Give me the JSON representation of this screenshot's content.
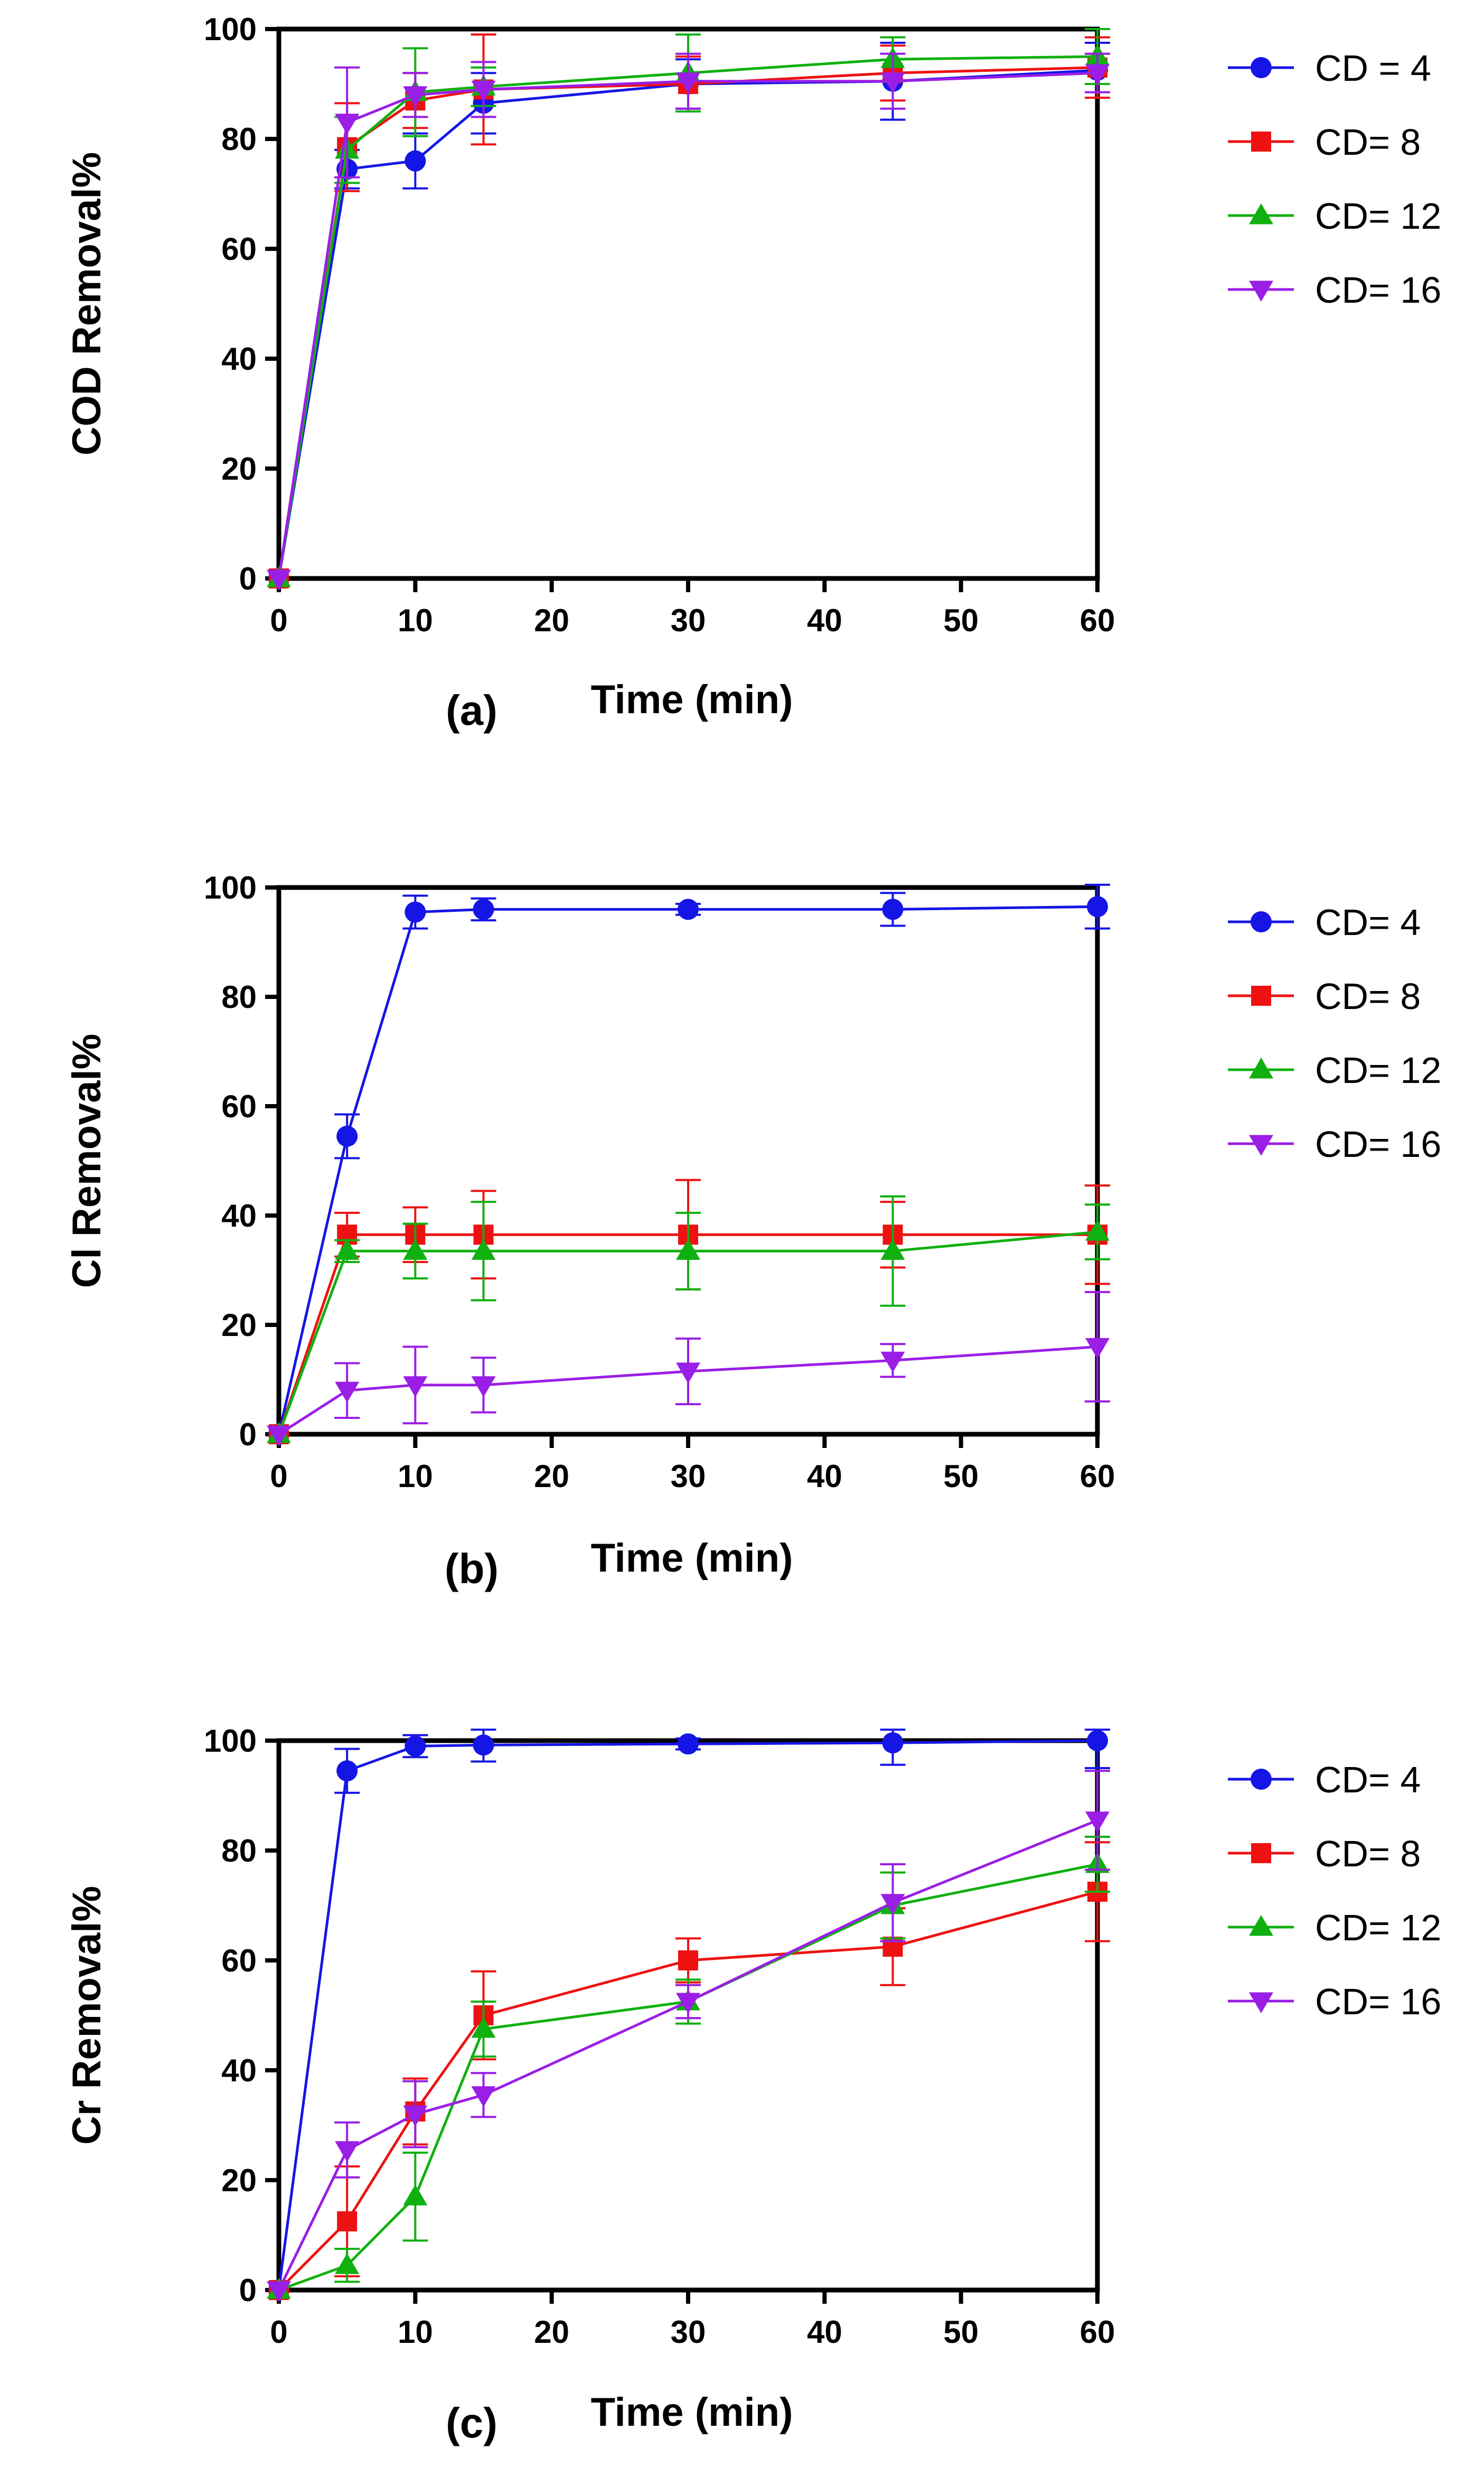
{
  "chart_data": [
    {
      "type": "line",
      "panel_label": "(a)",
      "xlabel": "Time (min)",
      "ylabel": "COD Removal%",
      "xlim": [
        0,
        60
      ],
      "ylim": [
        0,
        100
      ],
      "xticks": [
        0,
        10,
        20,
        30,
        40,
        50,
        60
      ],
      "yticks": [
        0,
        20,
        40,
        60,
        80,
        100
      ],
      "legend_position": "right",
      "x": [
        0,
        5,
        10,
        15,
        30,
        45,
        60
      ],
      "series": [
        {
          "name": "CD = 4",
          "color": "#1515e6",
          "marker": "circle",
          "values": [
            0,
            74.5,
            76,
            86.5,
            90,
            90.5,
            92.5
          ],
          "errors": [
            0,
            3.5,
            5,
            5.5,
            4.5,
            7,
            5
          ]
        },
        {
          "name": "CD= 8",
          "color": "#ee1111",
          "marker": "square",
          "values": [
            0,
            78.5,
            87,
            89,
            90,
            92,
            93
          ],
          "errors": [
            0,
            8,
            5,
            10,
            5,
            5,
            5.5
          ]
        },
        {
          "name": "CD= 12",
          "color": "#10b010",
          "marker": "triangle-up",
          "values": [
            0,
            78,
            88.5,
            89.5,
            92,
            94.5,
            95
          ],
          "errors": [
            0,
            6,
            8,
            3.5,
            7,
            4,
            5
          ]
        },
        {
          "name": "CD= 16",
          "color": "#9a1ee6",
          "marker": "triangle-down",
          "values": [
            0,
            83,
            88,
            89,
            90.5,
            90.5,
            92
          ],
          "errors": [
            0,
            10,
            4,
            5,
            5,
            5,
            3.5
          ]
        }
      ]
    },
    {
      "type": "line",
      "panel_label": "(b)",
      "xlabel": "Time (min)",
      "ylabel": "Cl Removal%",
      "xlim": [
        0,
        60
      ],
      "ylim": [
        0,
        100
      ],
      "xticks": [
        0,
        10,
        20,
        30,
        40,
        50,
        60
      ],
      "yticks": [
        0,
        20,
        40,
        60,
        80,
        100
      ],
      "legend_position": "right",
      "x": [
        0,
        5,
        10,
        15,
        30,
        45,
        60
      ],
      "series": [
        {
          "name": "CD= 4",
          "color": "#1515e6",
          "marker": "circle",
          "values": [
            0,
            54.5,
            95.5,
            96,
            96,
            96,
            96.5
          ],
          "errors": [
            0,
            4,
            3,
            2,
            1,
            3,
            4
          ]
        },
        {
          "name": "CD= 8",
          "color": "#ee1111",
          "marker": "square",
          "values": [
            0,
            36.5,
            36.5,
            36.5,
            36.5,
            36.5,
            36.5
          ],
          "errors": [
            0,
            4,
            5,
            8,
            10,
            6,
            9
          ]
        },
        {
          "name": "CD= 12",
          "color": "#10b010",
          "marker": "triangle-up",
          "values": [
            0,
            33.5,
            33.5,
            33.5,
            33.5,
            33.5,
            37
          ],
          "errors": [
            0,
            2,
            5,
            9,
            7,
            10,
            5
          ]
        },
        {
          "name": "CD= 16",
          "color": "#9a1ee6",
          "marker": "triangle-down",
          "values": [
            0,
            8,
            9,
            9,
            11.5,
            13.5,
            16
          ],
          "errors": [
            0,
            5,
            7,
            5,
            6,
            3,
            10
          ]
        }
      ]
    },
    {
      "type": "line",
      "panel_label": "(c)",
      "xlabel": "Time (min)",
      "ylabel": "Cr Removal%",
      "xlim": [
        0,
        60
      ],
      "ylim": [
        0,
        100
      ],
      "xticks": [
        0,
        10,
        20,
        30,
        40,
        50,
        60
      ],
      "yticks": [
        0,
        20,
        40,
        60,
        80,
        100
      ],
      "legend_position": "right",
      "x": [
        0,
        5,
        10,
        15,
        30,
        45,
        60
      ],
      "series": [
        {
          "name": "CD= 4",
          "color": "#1515e6",
          "marker": "circle",
          "values": [
            0,
            94.5,
            99,
            99.2,
            99.4,
            99.6,
            100
          ],
          "errors": [
            0,
            4,
            2,
            3,
            1,
            4,
            5
          ]
        },
        {
          "name": "CD= 8",
          "color": "#ee1111",
          "marker": "square",
          "values": [
            0,
            12.5,
            32.5,
            50,
            60,
            62.5,
            72.5
          ],
          "errors": [
            0,
            10,
            6,
            8,
            4,
            7,
            9
          ]
        },
        {
          "name": "CD= 12",
          "color": "#10b010",
          "marker": "triangle-up",
          "values": [
            0,
            4.5,
            17,
            47.5,
            52.5,
            70,
            77.5
          ],
          "errors": [
            0,
            3,
            8,
            5,
            4,
            6,
            5
          ]
        },
        {
          "name": "CD= 16",
          "color": "#9a1ee6",
          "marker": "triangle-down",
          "values": [
            0,
            25.5,
            32,
            35.5,
            52.5,
            70.5,
            85.5
          ],
          "errors": [
            0,
            5,
            6,
            4,
            3,
            7,
            9
          ]
        }
      ]
    }
  ]
}
